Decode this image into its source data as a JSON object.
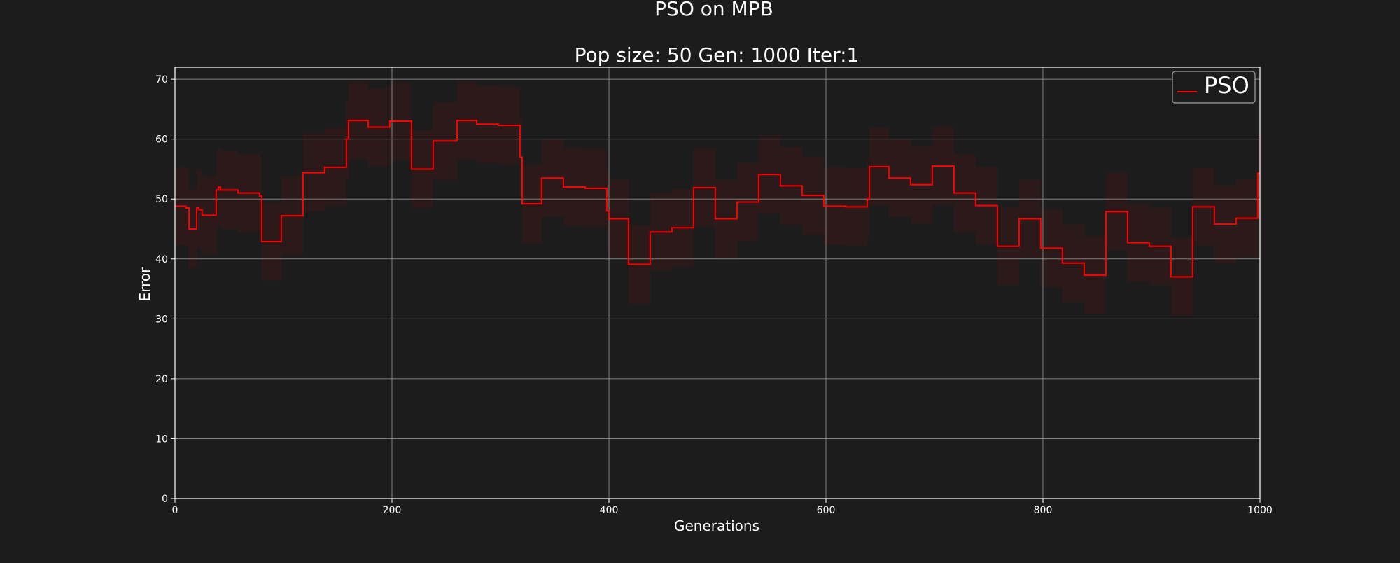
{
  "chart_data": {
    "type": "line",
    "title": "PSO on MPB",
    "subtitle": "Pop size: 50  Gen: 1000  Iter:1",
    "xlabel": "Generations",
    "ylabel": "Error",
    "xlim": [
      0,
      1000
    ],
    "ylim": [
      0,
      72
    ],
    "xticks": [
      0,
      200,
      400,
      600,
      800,
      1000
    ],
    "yticks": [
      0,
      10,
      20,
      30,
      40,
      50,
      60,
      70
    ],
    "grid": true,
    "legend": "top-right",
    "colors": {
      "background": "#1c1c1c",
      "line": "#ff0000",
      "band": "#3a1a1a",
      "grid": "#808080",
      "axes": "#ffffff"
    },
    "series": [
      {
        "name": "PSO",
        "band_halfwidth": 6.5,
        "x": [
          0,
          10,
          10,
          13,
          13,
          18,
          18,
          20,
          20,
          22,
          22,
          25,
          25,
          38,
          38,
          40,
          40,
          42,
          42,
          58,
          58,
          78,
          78,
          80,
          80,
          98,
          98,
          118,
          118,
          138,
          138,
          158,
          158,
          160,
          160,
          178,
          178,
          198,
          198,
          218,
          218,
          220,
          220,
          238,
          238,
          260,
          260,
          278,
          278,
          280,
          280,
          298,
          298,
          318,
          318,
          320,
          320,
          338,
          338,
          358,
          358,
          378,
          378,
          398,
          398,
          400,
          400,
          418,
          418,
          438,
          438,
          458,
          458,
          478,
          478,
          498,
          498,
          518,
          518,
          538,
          538,
          558,
          558,
          578,
          578,
          598,
          598,
          618,
          618,
          638,
          638,
          640,
          640,
          658,
          658,
          678,
          678,
          698,
          698,
          718,
          718,
          738,
          738,
          758,
          758,
          778,
          778,
          798,
          798,
          818,
          818,
          838,
          838,
          858,
          858,
          878,
          878,
          898,
          898,
          918,
          918,
          938,
          938,
          958,
          958,
          978,
          978,
          998,
          998,
          1000
        ],
        "y": [
          48.8,
          48.8,
          48.5,
          48.5,
          45,
          45,
          45,
          45,
          48.5,
          48.5,
          48.2,
          48.2,
          47.3,
          47.3,
          51.5,
          51.5,
          52,
          52,
          51.5,
          51.5,
          51,
          51,
          50.5,
          50.5,
          42.9,
          42.9,
          47.2,
          47.2,
          54.4,
          54.4,
          55.3,
          55.3,
          60,
          60,
          63.1,
          63.1,
          62,
          62,
          63,
          63,
          55,
          55,
          55,
          55,
          59.7,
          59.7,
          63.1,
          63.1,
          62.5,
          62.5,
          62.5,
          62.5,
          62.3,
          62.3,
          57,
          57,
          49.2,
          49.2,
          53.5,
          53.5,
          52,
          52,
          51.8,
          51.8,
          48,
          48,
          46.7,
          46.7,
          39.1,
          39.1,
          44.5,
          44.5,
          45.2,
          45.2,
          51.9,
          51.9,
          46.7,
          46.7,
          49.5,
          49.5,
          54.1,
          54.1,
          52.2,
          52.2,
          50.6,
          50.6,
          48.8,
          48.8,
          48.7,
          48.7,
          50,
          50,
          55.4,
          55.4,
          53.5,
          53.5,
          52.4,
          52.4,
          55.5,
          55.5,
          51,
          51,
          48.9,
          48.9,
          42.1,
          42.1,
          46.7,
          46.7,
          41.8,
          41.8,
          39.3,
          39.3,
          37.3,
          37.3,
          47.9,
          47.9,
          42.7,
          42.7,
          42.1,
          42.1,
          37,
          37,
          48.7,
          48.7,
          45.8,
          45.8,
          46.8,
          46.8,
          54.3,
          54.3
        ]
      }
    ]
  }
}
